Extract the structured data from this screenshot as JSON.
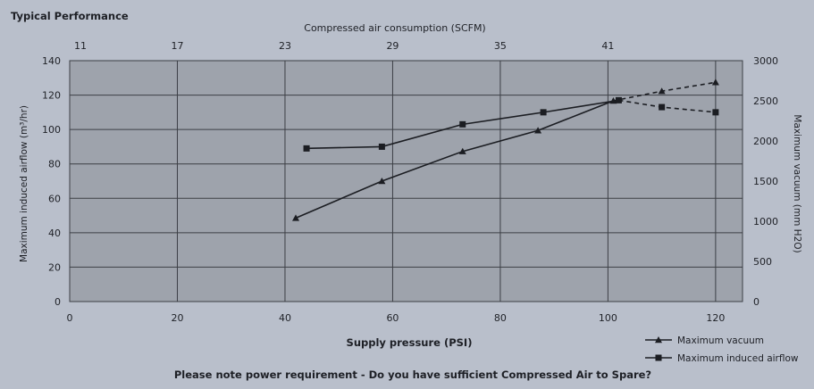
{
  "chart_data": {
    "type": "line",
    "title": "Typical Performance",
    "note": "Please note power requirement - Do you have sufficient Compressed Air to Spare?",
    "xlabel": "Supply pressure (PSI)",
    "x2label": "Compressed air consumption (SCFM)",
    "ylabel": "Maximum induced airflow (m³/hr)",
    "y2label": "Maximum vacuum (mm H2O)",
    "xlim": [
      0,
      125
    ],
    "ylim": [
      0,
      140
    ],
    "y2lim": [
      0,
      3000
    ],
    "x_ticks": [
      "0",
      "20",
      "40",
      "60",
      "80",
      "100",
      "120"
    ],
    "x2_ticks": [
      "11",
      "17",
      "23",
      "29",
      "35",
      "41"
    ],
    "y_ticks": [
      "0",
      "20",
      "40",
      "60",
      "80",
      "100",
      "120",
      "140"
    ],
    "y2_ticks": [
      "0",
      "500",
      "1000",
      "1500",
      "2000",
      "2500",
      "3000"
    ],
    "grid": true,
    "legend_position": "bottom-right",
    "series": [
      {
        "name": "Maximum vacuum",
        "marker": "triangle",
        "axis": "right",
        "solid_points": [
          [
            42,
            1040
          ],
          [
            58,
            1500
          ],
          [
            73,
            1870
          ],
          [
            87,
            2130
          ],
          [
            101,
            2500
          ]
        ],
        "dashed_points": [
          [
            101,
            2500
          ],
          [
            110,
            2620
          ],
          [
            120,
            2730
          ]
        ]
      },
      {
        "name": "Maximum induced airflow",
        "marker": "square",
        "axis": "left",
        "solid_points": [
          [
            44,
            89
          ],
          [
            58,
            90
          ],
          [
            73,
            103
          ],
          [
            88,
            110
          ],
          [
            102,
            117
          ]
        ],
        "dashed_points": [
          [
            102,
            117
          ],
          [
            110,
            113
          ],
          [
            120,
            110
          ]
        ]
      }
    ]
  },
  "colors": {
    "background": "#b9bfcb",
    "plot_area": "#9ea3ac",
    "grid": "#3c3f45",
    "text": "#1e2026",
    "line": "#1b1d22"
  }
}
